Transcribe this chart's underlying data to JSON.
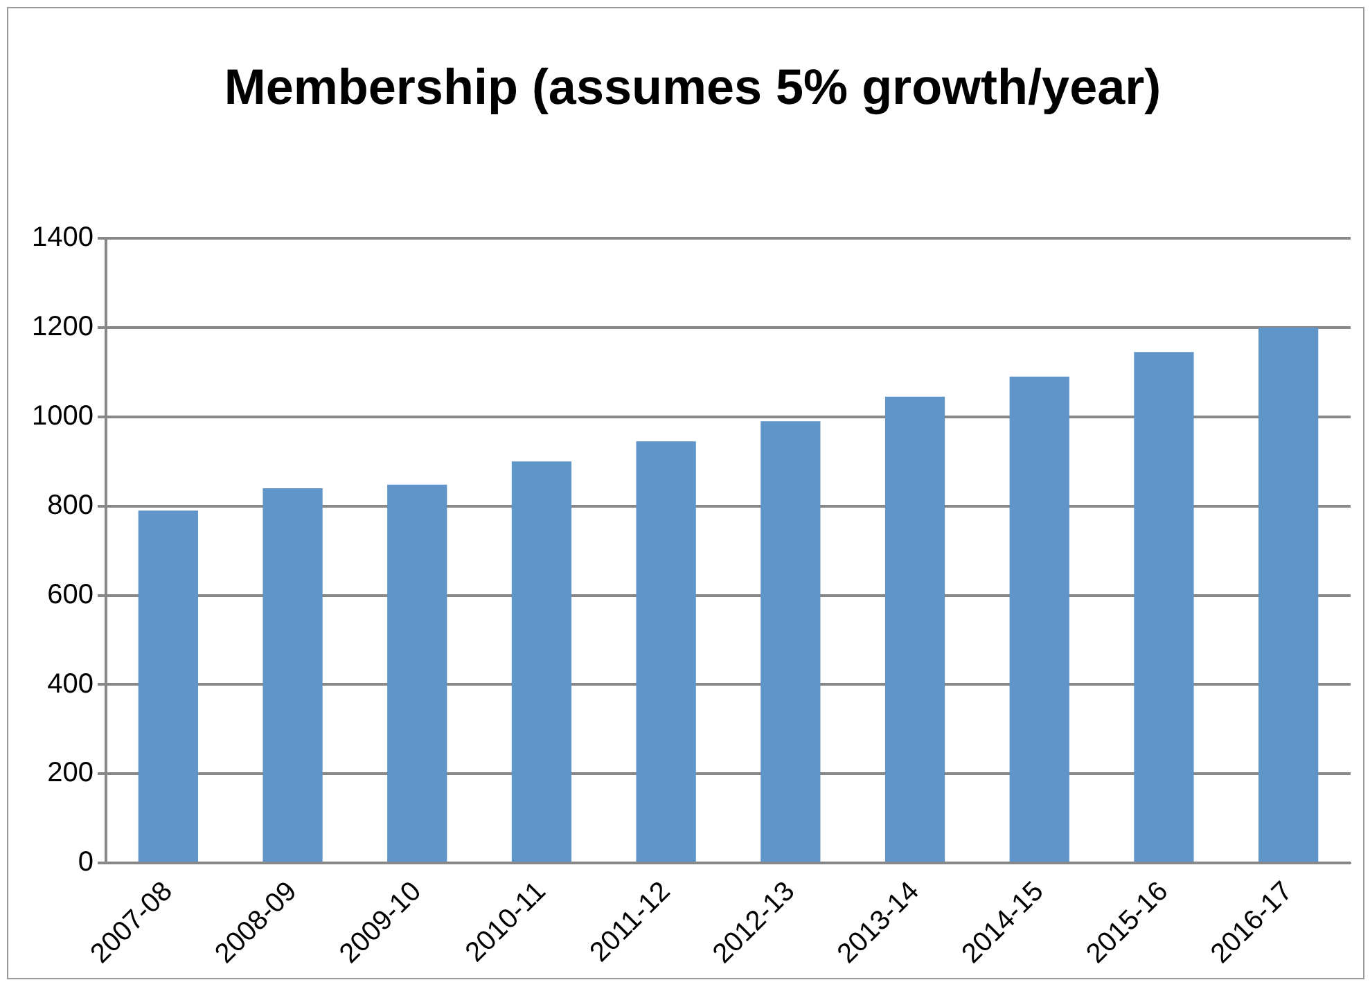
{
  "chart_data": {
    "type": "bar",
    "title": "Membership (assumes 5% growth/year)",
    "categories": [
      "2007-08",
      "2008-09",
      "2009-10",
      "2010-11",
      "2011-12",
      "2012-13",
      "2013-14",
      "2014-15",
      "2015-16",
      "2016-17"
    ],
    "values": [
      790,
      840,
      848,
      900,
      945,
      990,
      1045,
      1090,
      1145,
      1200
    ],
    "color": "#5f95c8",
    "ylim": [
      0,
      1400
    ],
    "yticks": [
      0,
      200,
      400,
      600,
      800,
      1000,
      1200,
      1400
    ],
    "grid": "y",
    "legend": false
  }
}
